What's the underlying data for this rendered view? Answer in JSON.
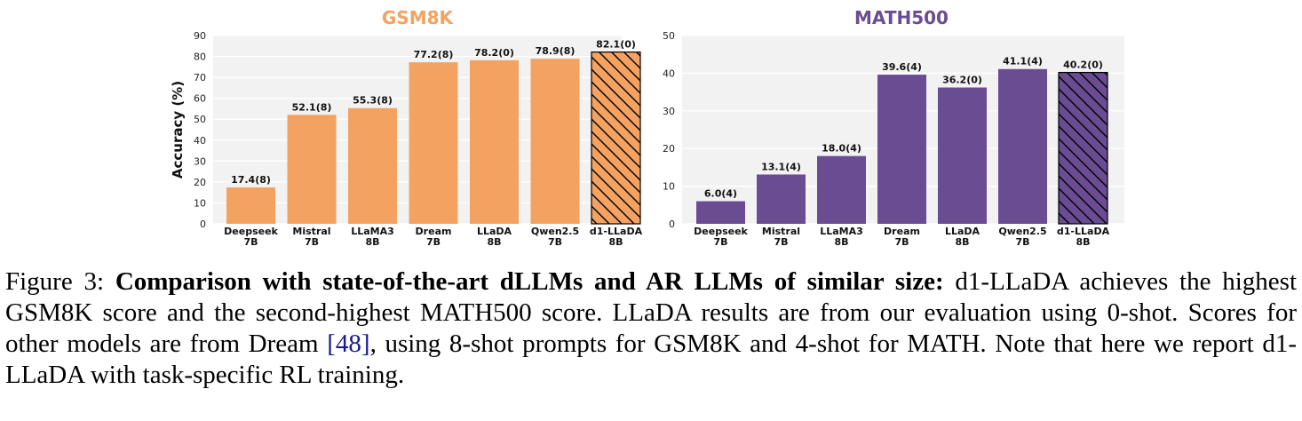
{
  "chart_data": [
    {
      "type": "bar",
      "title": "GSM8K",
      "ylabel": "Accuracy (%)",
      "ylim": [
        0,
        90
      ],
      "yticks": [
        0,
        10,
        20,
        30,
        40,
        50,
        60,
        70,
        80,
        90
      ],
      "categories": [
        [
          "Deepseek",
          "7B"
        ],
        [
          "Mistral",
          "7B"
        ],
        [
          "LLaMA3",
          "8B"
        ],
        [
          "Dream",
          "7B"
        ],
        [
          "LLaDA",
          "8B"
        ],
        [
          "Qwen2.5",
          "7B"
        ],
        [
          "d1-LLaDA",
          "8B"
        ]
      ],
      "values": [
        17.4,
        52.1,
        55.3,
        77.2,
        78.2,
        78.9,
        82.1
      ],
      "labels": [
        "17.4(8)",
        "52.1(8)",
        "55.3(8)",
        "77.2(8)",
        "78.2(0)",
        "78.9(8)",
        "82.1(0)"
      ],
      "hatched": [
        false,
        false,
        false,
        false,
        false,
        false,
        true
      ],
      "color": "#f4a261",
      "title_color": "#f4a261"
    },
    {
      "type": "bar",
      "title": "MATH500",
      "ylabel": "",
      "ylim": [
        0,
        50
      ],
      "yticks": [
        0,
        10,
        20,
        30,
        40,
        50
      ],
      "categories": [
        [
          "Deepseek",
          "7B"
        ],
        [
          "Mistral",
          "7B"
        ],
        [
          "LLaMA3",
          "8B"
        ],
        [
          "Dream",
          "7B"
        ],
        [
          "LLaDA",
          "8B"
        ],
        [
          "Qwen2.5",
          "7B"
        ],
        [
          "d1-LLaDA",
          "8B"
        ]
      ],
      "values": [
        6.0,
        13.1,
        18.0,
        39.6,
        36.2,
        41.1,
        40.2
      ],
      "labels": [
        "6.0(4)",
        "13.1(4)",
        "18.0(4)",
        "39.6(4)",
        "36.2(0)",
        "41.1(4)",
        "40.2(0)"
      ],
      "hatched": [
        false,
        false,
        false,
        false,
        false,
        false,
        true
      ],
      "color": "#6a4c93",
      "title_color": "#6a4c93"
    }
  ],
  "caption": {
    "prefix": "Figure 3: ",
    "bold": "Comparison with state-of-the-art dLLMs and AR LLMs of similar size:",
    "text1": " d1-LLaDA achieves the highest GSM8K score and the second-highest MATH500 score. LLaDA results are from our evaluation using 0-shot. Scores for other models are from Dream ",
    "ref": "[48]",
    "text2": ", using 8-shot prompts for GSM8K and 4-shot for MATH. Note that here we report d1-LLaDA with task-specific RL training."
  }
}
